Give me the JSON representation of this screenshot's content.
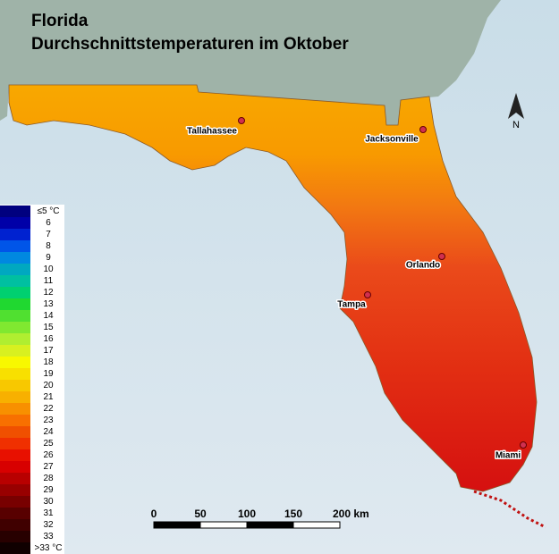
{
  "title": "Florida",
  "subtitle": "Durchschnittstemperaturen im Oktober",
  "legend": [
    {
      "label": "≤5 °C",
      "color": "#00007f"
    },
    {
      "label": "6",
      "color": "#0000a8"
    },
    {
      "label": "7",
      "color": "#0022d0"
    },
    {
      "label": "8",
      "color": "#0055e8"
    },
    {
      "label": "9",
      "color": "#0088e0"
    },
    {
      "label": "10",
      "color": "#00a8c0"
    },
    {
      "label": "11",
      "color": "#00c0a0"
    },
    {
      "label": "12",
      "color": "#00d070"
    },
    {
      "label": "13",
      "color": "#20d830"
    },
    {
      "label": "14",
      "color": "#50e030"
    },
    {
      "label": "15",
      "color": "#80e830"
    },
    {
      "label": "16",
      "color": "#b0ee30"
    },
    {
      "label": "17",
      "color": "#d8f020"
    },
    {
      "label": "18",
      "color": "#f8f800"
    },
    {
      "label": "19",
      "color": "#f8e000"
    },
    {
      "label": "20",
      "color": "#f8c800"
    },
    {
      "label": "21",
      "color": "#f8b000"
    },
    {
      "label": "22",
      "color": "#f89000"
    },
    {
      "label": "23",
      "color": "#f87000"
    },
    {
      "label": "24",
      "color": "#f05000"
    },
    {
      "label": "25",
      "color": "#f03000"
    },
    {
      "label": "26",
      "color": "#e81000"
    },
    {
      "label": "27",
      "color": "#d80000"
    },
    {
      "label": "28",
      "color": "#b80000"
    },
    {
      "label": "29",
      "color": "#980000"
    },
    {
      "label": "30",
      "color": "#780000"
    },
    {
      "label": "31",
      "color": "#580000"
    },
    {
      "label": "32",
      "color": "#400000"
    },
    {
      "label": "33",
      "color": "#280000"
    },
    {
      "label": ">33 °C",
      "color": "#100000"
    }
  ],
  "cities": [
    "Tallahassee",
    "Jacksonville",
    "Orlando",
    "Tampa",
    "Miami"
  ],
  "scale_bar": [
    "0",
    "50",
    "100",
    "150",
    "200 km"
  ],
  "north": "N"
}
